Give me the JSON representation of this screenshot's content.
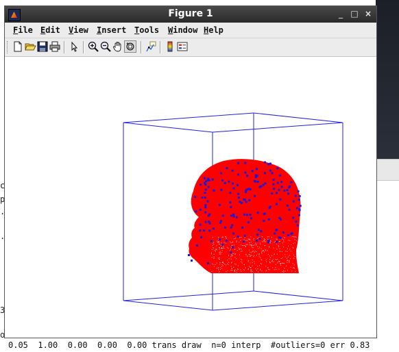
{
  "window": {
    "title": "Figure 1",
    "controls": {
      "minimize": "_",
      "maximize": "□",
      "close": "×"
    }
  },
  "menu": {
    "items": [
      {
        "key": "F",
        "rest": "ile"
      },
      {
        "key": "E",
        "rest": "dit"
      },
      {
        "key": "V",
        "rest": "iew"
      },
      {
        "key": "I",
        "rest": "nsert"
      },
      {
        "key": "T",
        "rest": "ools"
      },
      {
        "key": "W",
        "rest": "indow"
      },
      {
        "key": "H",
        "rest": "elp"
      }
    ]
  },
  "toolbar": {
    "buttons": [
      "new-figure-icon",
      "open-file-icon",
      "save-icon",
      "print-icon",
      "edit-plot-arrow-icon",
      "zoom-in-icon",
      "zoom-out-icon",
      "pan-hand-icon",
      "rotate-3d-icon",
      "data-cursor-icon",
      "colorbar-icon",
      "legend-icon"
    ]
  },
  "status": {
    "text": "0.05  1.00  0.00  0.00  0.00 trans draw  n=0 interp  #outliers=0 err 0.83"
  },
  "background": {
    "left_fragments": [
      "ch",
      "p",
      ".",
      ".",
      "3",
      "o"
    ]
  },
  "colors": {
    "box": "#2020e0",
    "head": "#ff0000",
    "markers": "#1a1adc"
  }
}
